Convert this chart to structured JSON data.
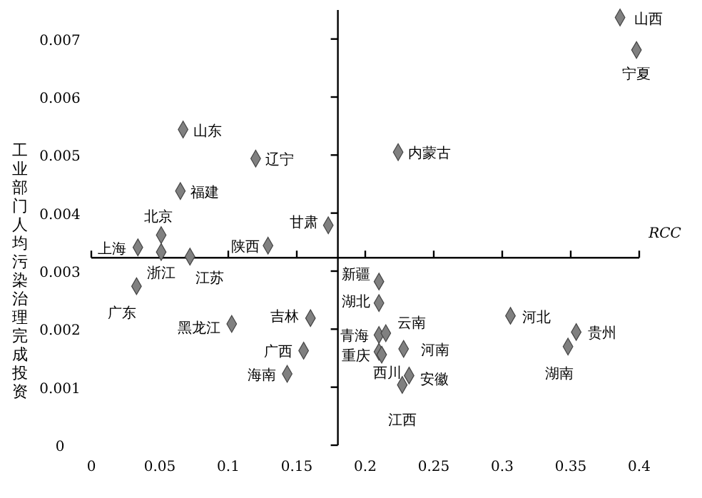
{
  "chart_data": {
    "type": "scatter",
    "xlabel": "RCC",
    "ylabel": "工业部门人均污染治理完成投资",
    "x": [
      0.386,
      0.398,
      0.067,
      0.12,
      0.224,
      0.065,
      0.051,
      0.173,
      0.034,
      0.129,
      0.051,
      0.072,
      0.033,
      0.21,
      0.21,
      0.16,
      0.1025,
      0.21,
      0.215,
      0.155,
      0.228,
      0.21,
      0.212,
      0.143,
      0.232,
      0.227,
      0.306,
      0.354,
      0.348
    ],
    "values": [
      0.00737,
      0.00681,
      0.00544,
      0.00494,
      0.00505,
      0.00438,
      0.00362,
      0.00379,
      0.00341,
      0.00344,
      0.00333,
      0.00325,
      0.00274,
      0.00282,
      0.00245,
      0.00219,
      0.00209,
      0.0019,
      0.00193,
      0.00163,
      0.00166,
      0.00161,
      0.00156,
      0.00123,
      0.0012,
      0.00104,
      0.00223,
      0.00195,
      0.0017
    ],
    "color": "#808080",
    "marker": "diamond",
    "annotations": [
      {
        "text": "山西",
        "x": 0.386,
        "y": 0.00737
      },
      {
        "text": "宁夏",
        "x": 0.398,
        "y": 0.00681
      },
      {
        "text": "山东",
        "x": 0.067,
        "y": 0.00544
      },
      {
        "text": "辽宁",
        "x": 0.12,
        "y": 0.00494
      },
      {
        "text": "内蒙古",
        "x": 0.224,
        "y": 0.00505
      },
      {
        "text": "福建",
        "x": 0.065,
        "y": 0.00438
      },
      {
        "text": "北京",
        "x": 0.051,
        "y": 0.00362
      },
      {
        "text": "甘肃",
        "x": 0.173,
        "y": 0.00379
      },
      {
        "text": "上海",
        "x": 0.034,
        "y": 0.00341
      },
      {
        "text": "陕西",
        "x": 0.129,
        "y": 0.00344
      },
      {
        "text": "浙江",
        "x": 0.051,
        "y": 0.00333
      },
      {
        "text": "江苏",
        "x": 0.072,
        "y": 0.00325
      },
      {
        "text": "广东",
        "x": 0.033,
        "y": 0.00274
      },
      {
        "text": "新疆",
        "x": 0.21,
        "y": 0.00282
      },
      {
        "text": "湖北",
        "x": 0.21,
        "y": 0.00245
      },
      {
        "text": "吉林",
        "x": 0.16,
        "y": 0.00219
      },
      {
        "text": "黑龙江",
        "x": 0.1025,
        "y": 0.00209
      },
      {
        "text": "青海",
        "x": 0.21,
        "y": 0.0019
      },
      {
        "text": "云南",
        "x": 0.215,
        "y": 0.00193
      },
      {
        "text": "广西",
        "x": 0.155,
        "y": 0.00163
      },
      {
        "text": "河南",
        "x": 0.228,
        "y": 0.00166
      },
      {
        "text": "重庆",
        "x": 0.21,
        "y": 0.00161
      },
      {
        "text": "西川",
        "x": 0.212,
        "y": 0.00156
      },
      {
        "text": "海南",
        "x": 0.143,
        "y": 0.00123
      },
      {
        "text": "安徽",
        "x": 0.232,
        "y": 0.0012
      },
      {
        "text": "江西",
        "x": 0.227,
        "y": 0.00104
      },
      {
        "text": "河北",
        "x": 0.306,
        "y": 0.00223
      },
      {
        "text": "贵州",
        "x": 0.354,
        "y": 0.00195
      },
      {
        "text": "湖南",
        "x": 0.348,
        "y": 0.0017
      }
    ],
    "xlim": [
      0,
      0.4
    ],
    "ylim": [
      0,
      0.0075
    ],
    "xticks": [
      0,
      0.05,
      0.1,
      0.15,
      0.2,
      0.25,
      0.3,
      0.35,
      0.4
    ],
    "yticks": [
      0,
      0.001,
      0.002,
      0.003,
      0.004,
      0.005,
      0.006,
      0.007
    ],
    "ref_lines": [
      {
        "axis": "x",
        "value": 0.18
      },
      {
        "axis": "y",
        "value": 0.00323
      }
    ],
    "grid": false
  }
}
